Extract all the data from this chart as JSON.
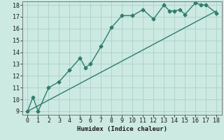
{
  "title": "",
  "xlabel": "Humidex (Indice chaleur)",
  "xlim": [
    -0.5,
    18.5
  ],
  "ylim": [
    8.7,
    18.3
  ],
  "xticks": [
    0,
    1,
    2,
    3,
    4,
    5,
    6,
    7,
    8,
    9,
    10,
    11,
    12,
    13,
    14,
    15,
    16,
    17,
    18
  ],
  "yticks": [
    9,
    10,
    11,
    12,
    13,
    14,
    15,
    16,
    17,
    18
  ],
  "bg_color": "#cce9e2",
  "line_color": "#2e7d6e",
  "grid_color": "#aed4cc",
  "curve_x": [
    0,
    0.5,
    1,
    2,
    3,
    4,
    5,
    5.5,
    6,
    7,
    8,
    9,
    10,
    11,
    12,
    13,
    13.5,
    14,
    14.5,
    15,
    16,
    16.5,
    17,
    18
  ],
  "curve_y": [
    9,
    10.2,
    9,
    11,
    11.5,
    12.5,
    13.5,
    12.7,
    13.0,
    14.5,
    16.1,
    17.1,
    17.1,
    17.6,
    16.8,
    18.0,
    17.5,
    17.5,
    17.6,
    17.2,
    18.2,
    18.0,
    18.0,
    17.3
  ],
  "refline_x": [
    0,
    18
  ],
  "refline_y": [
    9,
    17.5
  ],
  "tick_fontsize": 6.0,
  "xlabel_fontsize": 6.5
}
